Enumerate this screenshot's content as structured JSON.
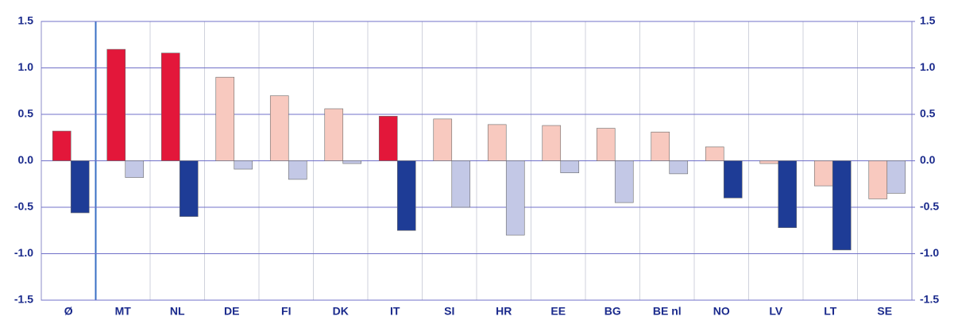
{
  "chart_data": {
    "type": "bar",
    "categories": [
      "Ø",
      "MT",
      "NL",
      "DE",
      "FI",
      "DK",
      "IT",
      "SI",
      "HR",
      "EE",
      "BG",
      "BE nl",
      "NO",
      "LV",
      "LT",
      "SE"
    ],
    "series": [
      {
        "values": [
          0.32,
          1.2,
          1.16,
          0.9,
          0.7,
          0.56,
          0.48,
          0.45,
          0.39,
          0.38,
          0.35,
          0.31,
          0.15,
          -0.03,
          -0.27,
          -0.41
        ],
        "colors": [
          "#e3173a",
          "#e3173a",
          "#e3173a",
          "#f8c9bf",
          "#f8c9bf",
          "#f8c9bf",
          "#e3173a",
          "#f8c9bf",
          "#f8c9bf",
          "#f8c9bf",
          "#f8c9bf",
          "#f8c9bf",
          "#f8c9bf",
          "#f8c9bf",
          "#f8c9bf",
          "#f8c9bf"
        ]
      },
      {
        "values": [
          -0.56,
          -0.18,
          -0.6,
          -0.09,
          -0.2,
          -0.03,
          -0.75,
          -0.5,
          -0.8,
          -0.13,
          -0.45,
          -0.14,
          -0.4,
          -0.72,
          -0.96,
          -0.35
        ],
        "colors": [
          "#1e3c96",
          "#c3c8e6",
          "#1e3c96",
          "#c3c8e6",
          "#c3c8e6",
          "#c3c8e6",
          "#1e3c96",
          "#c3c8e6",
          "#c3c8e6",
          "#c3c8e6",
          "#c3c8e6",
          "#c3c8e6",
          "#1e3c96",
          "#1e3c96",
          "#1e3c96",
          "#c3c8e6"
        ]
      }
    ],
    "ylim": [
      -1.5,
      1.5
    ],
    "yticks": [
      1.5,
      {
        "value": 1,
        "label": "1.0"
      },
      0.5,
      {
        "value": 0,
        "label": "0.0"
      },
      -0.5,
      {
        "value": -1,
        "label": "-1.0"
      },
      -1.5
    ],
    "y2lim": [
      -1.5,
      1.5
    ],
    "y2ticks": [
      1.5,
      {
        "value": 1,
        "label": "1.0"
      },
      0.5,
      {
        "value": 0,
        "label": "0.0"
      },
      -0.5,
      {
        "value": -1,
        "label": "-1.0"
      },
      -1.5
    ],
    "grid": true
  }
}
